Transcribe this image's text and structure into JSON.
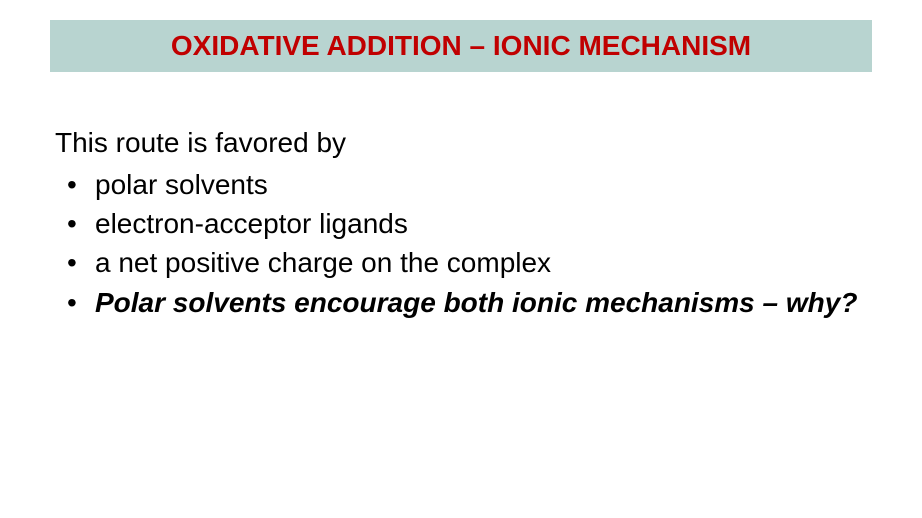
{
  "title": "OXIDATIVE ADDITION – IONIC MECHANISM",
  "intro": "This route is favored by",
  "bullets": [
    {
      "text": "polar solvents",
      "emphasized": false
    },
    {
      "text": "electron‐acceptor ligands",
      "emphasized": false
    },
    {
      "text": "a net positive charge on the complex",
      "emphasized": false
    },
    {
      "text": " Polar solvents encourage both ionic mechanisms – why?",
      "emphasized": true
    }
  ],
  "colors": {
    "title_bg": "#b8d4d0",
    "title_text": "#c00000",
    "body_text": "#000000",
    "page_bg": "#ffffff"
  },
  "typography": {
    "title_fontsize": 28,
    "body_fontsize": 28,
    "title_weight": "bold",
    "font_family": "Arial"
  }
}
